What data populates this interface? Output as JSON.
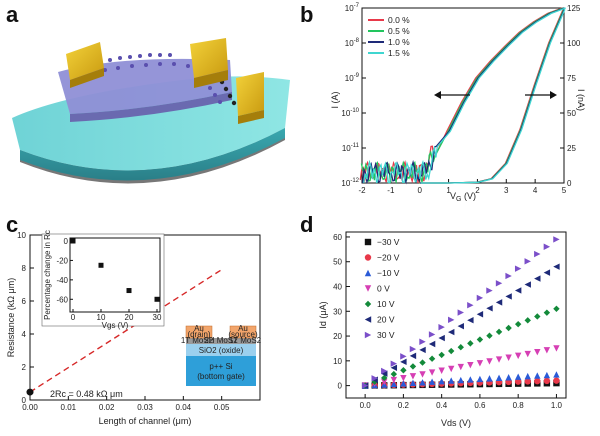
{
  "panels": {
    "a": "a",
    "b": "b",
    "c": "c",
    "d": "d"
  },
  "colors": {
    "red": "#e8394a",
    "green": "#22c55e",
    "navy": "#1e2a78",
    "cyan": "#3fd6d0",
    "black": "#111111",
    "blue": "#2a5bd7",
    "magenta": "#d63fb4",
    "darkgreen": "#138a3a",
    "purple": "#7b4fc9"
  },
  "chart_data": [
    {
      "id": "b",
      "type": "line",
      "xlabel": "VG (V)",
      "ylabel_left": "ID (A)",
      "ylabel_right": "ID (nA)",
      "xlim": [
        -2,
        5
      ],
      "xticks": [
        "-2",
        "-1",
        "0",
        "1",
        "2",
        "3",
        "4",
        "5"
      ],
      "ylim_left_log": [
        -12,
        -7
      ],
      "yticks_left": [
        "10-7",
        "10-8",
        "10-9",
        "10-10",
        "10-11",
        "10-12"
      ],
      "ylim_right": [
        0,
        125
      ],
      "yticks_right": [
        "125",
        "100",
        "75",
        "50",
        "25",
        "0"
      ],
      "series": [
        {
          "name": "0.0 %",
          "color": "#e8394a"
        },
        {
          "name": "0.5 %",
          "color": "#22c55e"
        },
        {
          "name": "1.0 %",
          "color": "#1e2a78"
        },
        {
          "name": "1.5 %",
          "color": "#3fd6d0"
        }
      ],
      "log_curve": {
        "x": [
          -2,
          -1,
          0,
          0.5,
          1,
          1.5,
          2,
          2.5,
          3,
          3.5,
          4,
          4.5,
          5
        ],
        "y": [
          1e-12,
          1e-12,
          1.2e-12,
          4e-12,
          3e-11,
          2e-10,
          1e-09,
          3e-09,
          8e-09,
          2e-08,
          4e-08,
          7e-08,
          1e-07
        ]
      },
      "linear_curve": {
        "x": [
          0,
          1,
          2,
          2.5,
          3,
          3.5,
          4,
          4.5,
          5
        ],
        "y": [
          0,
          0,
          0.5,
          3,
          14,
          38,
          70,
          100,
          124
        ]
      },
      "legend_position": "top-left"
    },
    {
      "id": "c",
      "type": "scatter",
      "xlabel": "Length of channel (μm)",
      "ylabel": "Resistance (kΩ μm)",
      "xlim": [
        0,
        0.06
      ],
      "ylim": [
        0,
        10
      ],
      "xticks": [
        "0.00",
        "0.01",
        "0.02",
        "0.03",
        "0.04",
        "0.05"
      ],
      "yticks": [
        "0",
        "2",
        "4",
        "6",
        "8",
        "10"
      ],
      "points": [
        {
          "x": 0.0,
          "y": 0.48
        }
      ],
      "fit_line": {
        "x": [
          0,
          0.05
        ],
        "y": [
          0.48,
          7.9
        ]
      },
      "annotation": "2Rc = 0.48 kΩ μm",
      "inset": {
        "xlabel": "Vgs (V)",
        "ylabel": "Percentage change in Rc",
        "xlim": [
          0,
          30
        ],
        "ylim": [
          -70,
          0
        ],
        "xticks": [
          "0",
          "10",
          "20",
          "30"
        ],
        "yticks": [
          "0",
          "-20",
          "-40",
          "-60"
        ],
        "points": [
          {
            "x": 0,
            "y": 0
          },
          {
            "x": 10,
            "y": -25
          },
          {
            "x": 20,
            "y": -51
          },
          {
            "x": 30,
            "y": -60
          }
        ]
      },
      "device": {
        "au_left": "Au",
        "drain": "(drain)",
        "au_right": "Au",
        "source": "(source)",
        "mos_left": "1T MoS2",
        "mos_mid": "2H MoS2",
        "mos_right": "1T MoS2",
        "oxide": "SiO2 (oxide)",
        "si": "p++ Si",
        "gate": "(bottom gate)"
      }
    },
    {
      "id": "d",
      "type": "scatter",
      "xlabel": "Vds (V)",
      "ylabel": "Id (μA)",
      "xlim": [
        -0.1,
        1.05
      ],
      "ylim": [
        -5,
        62
      ],
      "xticks": [
        "0.0",
        "0.2",
        "0.4",
        "0.6",
        "0.8",
        "1.0"
      ],
      "yticks": [
        "0",
        "10",
        "20",
        "30",
        "40",
        "50",
        "60"
      ],
      "series": [
        {
          "name": "−30 V",
          "marker": "square",
          "color": "#111111",
          "slope": 1.0
        },
        {
          "name": "−20 V",
          "marker": "circle",
          "color": "#e8394a",
          "slope": 2.0
        },
        {
          "name": "−10 V",
          "marker": "triangle-up",
          "color": "#2a5bd7",
          "slope": 4.5
        },
        {
          "name": "0 V",
          "marker": "triangle-down",
          "color": "#d63fb4",
          "slope": 15.0
        },
        {
          "name": "10 V",
          "marker": "diamond",
          "color": "#138a3a",
          "slope": 31.0
        },
        {
          "name": "20 V",
          "marker": "triangle-left",
          "color": "#1e2a78",
          "slope": 48.0
        },
        {
          "name": "30 V",
          "marker": "triangle-right",
          "color": "#7b4fc9",
          "slope": 59.0
        }
      ],
      "legend_position": "top-left"
    }
  ]
}
